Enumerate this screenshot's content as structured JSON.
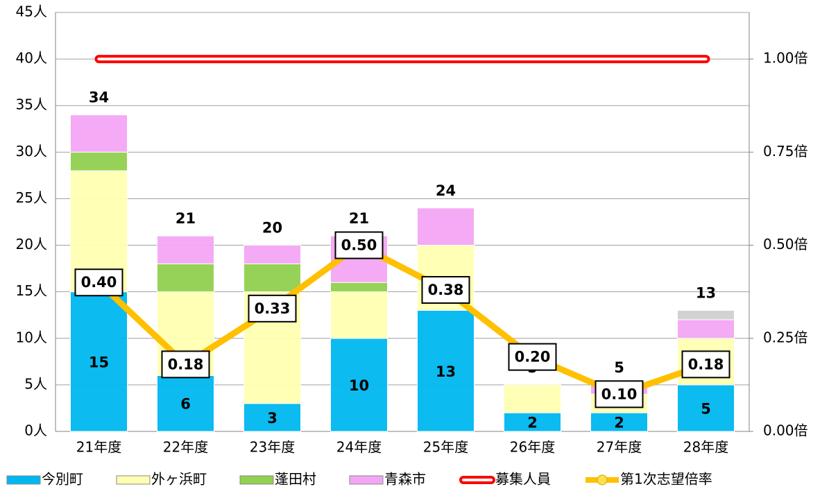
{
  "chart_data": {
    "type": "bar",
    "categories": [
      "21年度",
      "22年度",
      "23年度",
      "24年度",
      "25年度",
      "26年度",
      "27年度",
      "28年度"
    ],
    "series": [
      {
        "name": "今別町",
        "color": "#00b8f0",
        "values": [
          15,
          6,
          3,
          10,
          13,
          2,
          2,
          5
        ]
      },
      {
        "name": "外ヶ浜町",
        "color": "#ffffb3",
        "values": [
          13,
          9,
          12,
          5,
          7,
          3,
          2,
          5
        ]
      },
      {
        "name": "蓬田村",
        "color": "#92d050",
        "values": [
          2,
          3,
          3,
          1,
          0,
          0,
          0,
          0
        ]
      },
      {
        "name": "青森市",
        "color": "#f4a6f4",
        "values": [
          4,
          3,
          2,
          5,
          4,
          0,
          1,
          2
        ]
      },
      {
        "color": "#d0d0d0",
        "values": [
          0,
          0,
          0,
          0,
          0,
          0,
          0,
          1
        ]
      }
    ],
    "totals": [
      34,
      21,
      20,
      21,
      24,
      5,
      5,
      13
    ],
    "lines": [
      {
        "name": "募集人員",
        "type": "line",
        "color": "#ff0000",
        "values": [
          40,
          40,
          40,
          40,
          40,
          40,
          40,
          40
        ]
      },
      {
        "name": "第1次志望倍率",
        "type": "line",
        "axis": "y2",
        "color": "#ffc000",
        "values": [
          0.4,
          0.18,
          0.33,
          0.5,
          0.38,
          0.2,
          0.1,
          0.18
        ],
        "value_labels": [
          "0.40",
          "0.18",
          "0.33",
          "0.50",
          "0.38",
          "0.20",
          "0.10",
          "0.18"
        ]
      }
    ],
    "ylim": [
      0,
      45
    ],
    "yticks": [
      {
        "value": 0,
        "label": "0人"
      },
      {
        "value": 5,
        "label": "5人"
      },
      {
        "value": 10,
        "label": "10人"
      },
      {
        "value": 15,
        "label": "15人"
      },
      {
        "value": 20,
        "label": "20人"
      },
      {
        "value": 25,
        "label": "25人"
      },
      {
        "value": 30,
        "label": "30人"
      },
      {
        "value": 35,
        "label": "35人"
      },
      {
        "value": 40,
        "label": "40人"
      },
      {
        "value": 45,
        "label": "45人"
      }
    ],
    "y2lim": [
      0,
      1.125
    ],
    "y2ticks": [
      {
        "value": 0,
        "label": "0.00倍"
      },
      {
        "value": 0.25,
        "label": "0.25倍"
      },
      {
        "value": 0.5,
        "label": "0.50倍"
      },
      {
        "value": 0.75,
        "label": "0.75倍"
      },
      {
        "value": 1,
        "label": "1.00倍"
      }
    ],
    "grid": true
  }
}
